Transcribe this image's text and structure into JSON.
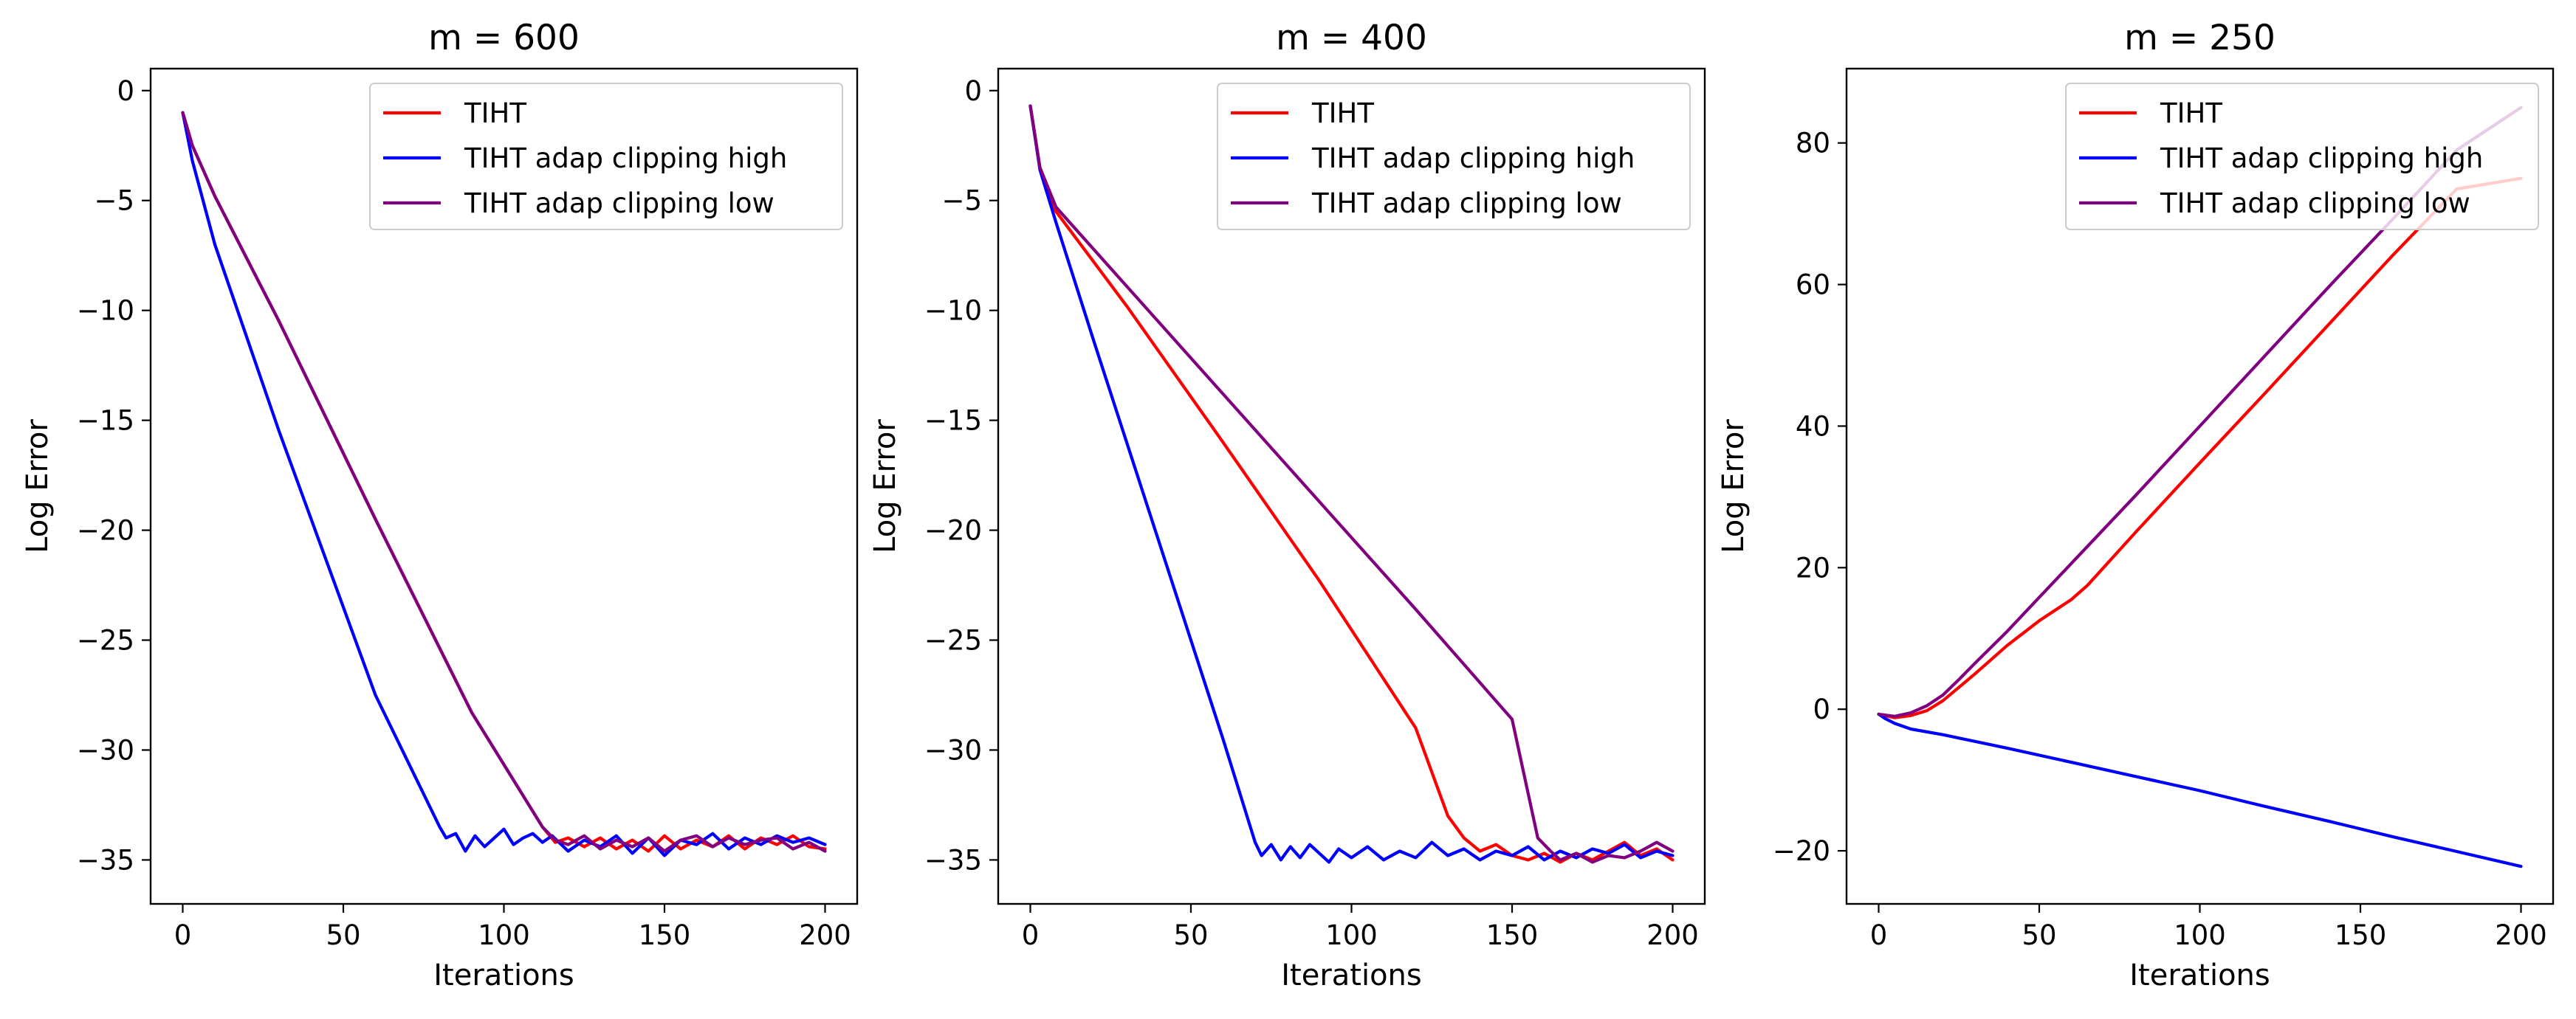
{
  "figure": {
    "background": "#ffffff",
    "legend_position": "top-right"
  },
  "chart_data": [
    {
      "type": "line",
      "title": "m = 600",
      "xlabel": "Iterations",
      "ylabel": "Log Error",
      "xlim": [
        -10,
        210
      ],
      "ylim": [
        -37,
        1
      ],
      "xticks": [
        0,
        50,
        100,
        150,
        200
      ],
      "yticks": [
        0,
        -5,
        -10,
        -15,
        -20,
        -25,
        -30,
        -35
      ],
      "grid": false,
      "legend": "top-right",
      "series": [
        {
          "name": "TIHT",
          "color": "#ff0000",
          "x": [
            0,
            3,
            10,
            30,
            60,
            90,
            112,
            116,
            120,
            125,
            130,
            135,
            140,
            145,
            150,
            155,
            160,
            165,
            170,
            175,
            180,
            185,
            190,
            195,
            200
          ],
          "y": [
            -1,
            -2.5,
            -4.8,
            -10.5,
            -19.5,
            -28.3,
            -33.5,
            -34.2,
            -34.0,
            -34.4,
            -34.0,
            -34.5,
            -34.1,
            -34.6,
            -33.9,
            -34.5,
            -34.1,
            -34.4,
            -33.9,
            -34.5,
            -34.0,
            -34.3,
            -33.9,
            -34.4,
            -34.5
          ]
        },
        {
          "name": "TIHT adap clipping high",
          "color": "#0000ff",
          "x": [
            0,
            3,
            10,
            30,
            60,
            80,
            82,
            85,
            88,
            91,
            94,
            97,
            100,
            103,
            106,
            109,
            112,
            115,
            120,
            125,
            130,
            135,
            140,
            145,
            150,
            155,
            160,
            165,
            170,
            175,
            180,
            185,
            190,
            195,
            200
          ],
          "y": [
            -1,
            -3.2,
            -7,
            -15.5,
            -27.5,
            -33.5,
            -34.0,
            -33.8,
            -34.6,
            -33.9,
            -34.4,
            -34.0,
            -33.6,
            -34.3,
            -34.0,
            -33.8,
            -34.2,
            -33.9,
            -34.6,
            -34.1,
            -34.4,
            -33.9,
            -34.7,
            -34.0,
            -34.8,
            -34.1,
            -34.3,
            -33.8,
            -34.5,
            -34.0,
            -34.3,
            -33.9,
            -34.2,
            -34.0,
            -34.3
          ]
        },
        {
          "name": "TIHT adap clipping low",
          "color": "#800080",
          "x": [
            0,
            3,
            10,
            30,
            60,
            90,
            112,
            116,
            120,
            125,
            130,
            135,
            140,
            145,
            150,
            155,
            160,
            165,
            170,
            175,
            180,
            185,
            190,
            195,
            200
          ],
          "y": [
            -1,
            -2.5,
            -4.8,
            -10.5,
            -19.5,
            -28.3,
            -33.5,
            -34.1,
            -34.3,
            -33.9,
            -34.5,
            -34.1,
            -34.4,
            -34.0,
            -34.6,
            -34.1,
            -33.9,
            -34.4,
            -34.0,
            -34.3,
            -34.1,
            -34.0,
            -34.5,
            -34.2,
            -34.6
          ]
        }
      ]
    },
    {
      "type": "line",
      "title": "m = 400",
      "xlabel": "Iterations",
      "ylabel": "Log Error",
      "xlim": [
        -10,
        210
      ],
      "ylim": [
        -37,
        1
      ],
      "xticks": [
        0,
        50,
        100,
        150,
        200
      ],
      "yticks": [
        0,
        -5,
        -10,
        -15,
        -20,
        -25,
        -30,
        -35
      ],
      "grid": false,
      "legend": "top-right",
      "series": [
        {
          "name": "TIHT",
          "color": "#ff0000",
          "x": [
            0,
            3,
            8,
            30,
            60,
            90,
            120,
            130,
            135,
            140,
            145,
            150,
            155,
            160,
            165,
            170,
            175,
            180,
            185,
            190,
            195,
            200
          ],
          "y": [
            -0.7,
            -3.5,
            -5.5,
            -9.8,
            -16.0,
            -22.3,
            -29.0,
            -33.0,
            -34.0,
            -34.6,
            -34.3,
            -34.8,
            -35.0,
            -34.7,
            -35.1,
            -34.7,
            -35.0,
            -34.6,
            -34.2,
            -34.8,
            -34.5,
            -35.0
          ]
        },
        {
          "name": "TIHT adap clipping high",
          "color": "#0000ff",
          "x": [
            0,
            3,
            8,
            20,
            40,
            60,
            70,
            72,
            75,
            78,
            81,
            84,
            87,
            90,
            93,
            96,
            100,
            105,
            110,
            115,
            120,
            125,
            130,
            135,
            140,
            145,
            150,
            155,
            160,
            165,
            170,
            175,
            180,
            185,
            190,
            195,
            200
          ],
          "y": [
            -0.7,
            -3.6,
            -6.0,
            -11.5,
            -20.5,
            -29.5,
            -34.2,
            -34.8,
            -34.3,
            -35.0,
            -34.4,
            -34.9,
            -34.3,
            -34.7,
            -35.1,
            -34.5,
            -34.9,
            -34.4,
            -35.0,
            -34.6,
            -34.9,
            -34.2,
            -34.8,
            -34.5,
            -35.0,
            -34.6,
            -34.8,
            -34.4,
            -35.0,
            -34.6,
            -34.9,
            -34.5,
            -34.7,
            -34.3,
            -34.9,
            -34.6,
            -34.8
          ]
        },
        {
          "name": "TIHT adap clipping low",
          "color": "#800080",
          "x": [
            0,
            3,
            8,
            30,
            60,
            90,
            120,
            150,
            158,
            162,
            165,
            170,
            175,
            180,
            185,
            190,
            195,
            200
          ],
          "y": [
            -0.7,
            -3.5,
            -5.3,
            -8.9,
            -13.8,
            -18.7,
            -23.6,
            -28.6,
            -34.0,
            -34.6,
            -35.0,
            -34.7,
            -35.1,
            -34.8,
            -34.9,
            -34.6,
            -34.2,
            -34.6
          ]
        }
      ]
    },
    {
      "type": "line",
      "title": "m = 250",
      "xlabel": "Iterations",
      "ylabel": "Log Error",
      "xlim": [
        -10,
        210
      ],
      "ylim": [
        -27.5,
        90.5
      ],
      "xticks": [
        0,
        50,
        100,
        150,
        200
      ],
      "yticks": [
        80,
        60,
        40,
        20,
        0,
        -20
      ],
      "grid": false,
      "legend": "top-right",
      "series": [
        {
          "name": "TIHT",
          "color": "#ff0000",
          "x": [
            0,
            5,
            10,
            15,
            20,
            30,
            40,
            50,
            60,
            65,
            80,
            100,
            120,
            140,
            160,
            180,
            200
          ],
          "y": [
            -0.7,
            -1.2,
            -0.9,
            -0.2,
            1.2,
            5.0,
            9.0,
            12.5,
            15.5,
            17.5,
            25.0,
            34.8,
            44.5,
            54.3,
            64.1,
            73.5,
            75.0
          ]
        },
        {
          "name": "TIHT adap clipping high",
          "color": "#0000ff",
          "x": [
            0,
            2,
            5,
            10,
            20,
            40,
            60,
            80,
            100,
            120,
            140,
            160,
            180,
            200
          ],
          "y": [
            -0.7,
            -1.3,
            -2.0,
            -2.8,
            -3.6,
            -5.5,
            -7.5,
            -9.5,
            -11.5,
            -13.7,
            -15.8,
            -18.0,
            -20.1,
            -22.2
          ]
        },
        {
          "name": "TIHT adap clipping low",
          "color": "#800080",
          "x": [
            0,
            5,
            10,
            15,
            20,
            25,
            30,
            40,
            50,
            60,
            80,
            100,
            120,
            140,
            160,
            180,
            200
          ],
          "y": [
            -0.7,
            -1.0,
            -0.5,
            0.5,
            2.0,
            4.2,
            6.5,
            11.0,
            15.8,
            20.6,
            30.2,
            40.0,
            49.8,
            59.6,
            69.2,
            79.0,
            85.0
          ]
        }
      ]
    }
  ]
}
